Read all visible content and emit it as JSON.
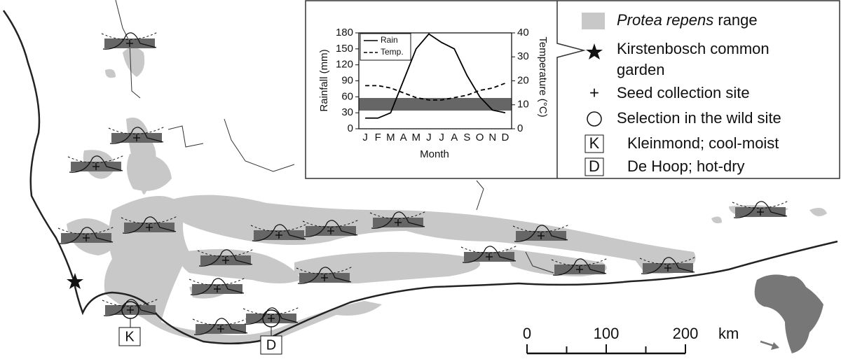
{
  "chart_data": {
    "type": "line",
    "xlabel": "Month",
    "ylabel": "Rainfall (mm)",
    "y2label": "Temperature (°C)",
    "categories": [
      "J",
      "F",
      "M",
      "A",
      "M",
      "J",
      "J",
      "A",
      "S",
      "O",
      "N",
      "D"
    ],
    "series": [
      {
        "name": "Rain",
        "color": "#000000",
        "dash": "solid",
        "values": [
          20,
          20,
          30,
          90,
          150,
          178,
          162,
          150,
          100,
          60,
          35,
          30
        ]
      },
      {
        "name": "Temp.",
        "color": "#000000",
        "dash": "dashed",
        "axis": "y2",
        "values": [
          18,
          18,
          17,
          15,
          13,
          12,
          12,
          13,
          14,
          16,
          17,
          19
        ]
      }
    ],
    "ylim": [
      0,
      180
    ],
    "yticks": [
      0,
      30,
      60,
      90,
      120,
      150,
      180
    ],
    "y2lim": [
      0,
      40
    ],
    "y2ticks": [
      0,
      10,
      20,
      30,
      40
    ]
  },
  "legend": {
    "items": [
      {
        "label_italic": "Protea repens",
        "label": "range"
      },
      {
        "label": "Kirstenbosch common"
      },
      {
        "label": "garden"
      },
      {
        "label": "Seed collection site"
      },
      {
        "label": "Selection in the wild site"
      },
      {
        "symbol": "K",
        "label": "Kleinmond; cool-moist"
      },
      {
        "symbol": "D",
        "label": "De Hoop; hot-dry"
      }
    ]
  },
  "sites": {
    "k_label": "K",
    "d_label": "D"
  },
  "scale_bar": {
    "ticks": [
      0,
      100,
      200
    ],
    "max": 200,
    "unit": "km"
  }
}
